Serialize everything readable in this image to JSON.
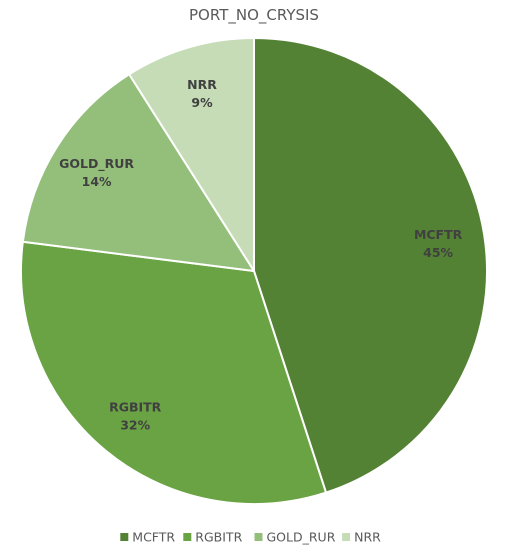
{
  "chart_data": {
    "type": "pie",
    "title": "PORT_NO_CRYSIS",
    "categories": [
      "MCFTR",
      "RGBITR",
      "GOLD_RUR",
      "NRR"
    ],
    "values": [
      45,
      32,
      14,
      9
    ],
    "value_labels": [
      "45%",
      "32%",
      "14%",
      "9%"
    ],
    "colors": [
      "#548235",
      "#6aa343",
      "#94bf7b",
      "#c5dcb7"
    ],
    "start_angle_deg": 0,
    "direction": "clockwise",
    "legend_position": "bottom"
  }
}
